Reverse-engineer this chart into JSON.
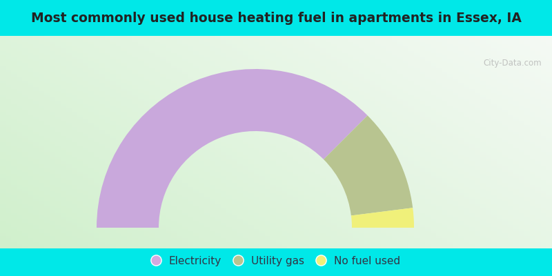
{
  "title": "Most commonly used house heating fuel in apartments in Essex, IA",
  "title_fontsize": 13.5,
  "background_outer": "#00E8E8",
  "segments": [
    {
      "label": "Electricity",
      "value": 75,
      "color": "#c9a8dc"
    },
    {
      "label": "Utility gas",
      "value": 21,
      "color": "#b8c490"
    },
    {
      "label": "No fuel used",
      "value": 4,
      "color": "#f0f07a"
    }
  ],
  "legend_labels": [
    "Electricity",
    "Utility gas",
    "No fuel used"
  ],
  "legend_colors": [
    "#d4a8e0",
    "#b8c490",
    "#f0f07a"
  ],
  "watermark": "City-Data.com"
}
